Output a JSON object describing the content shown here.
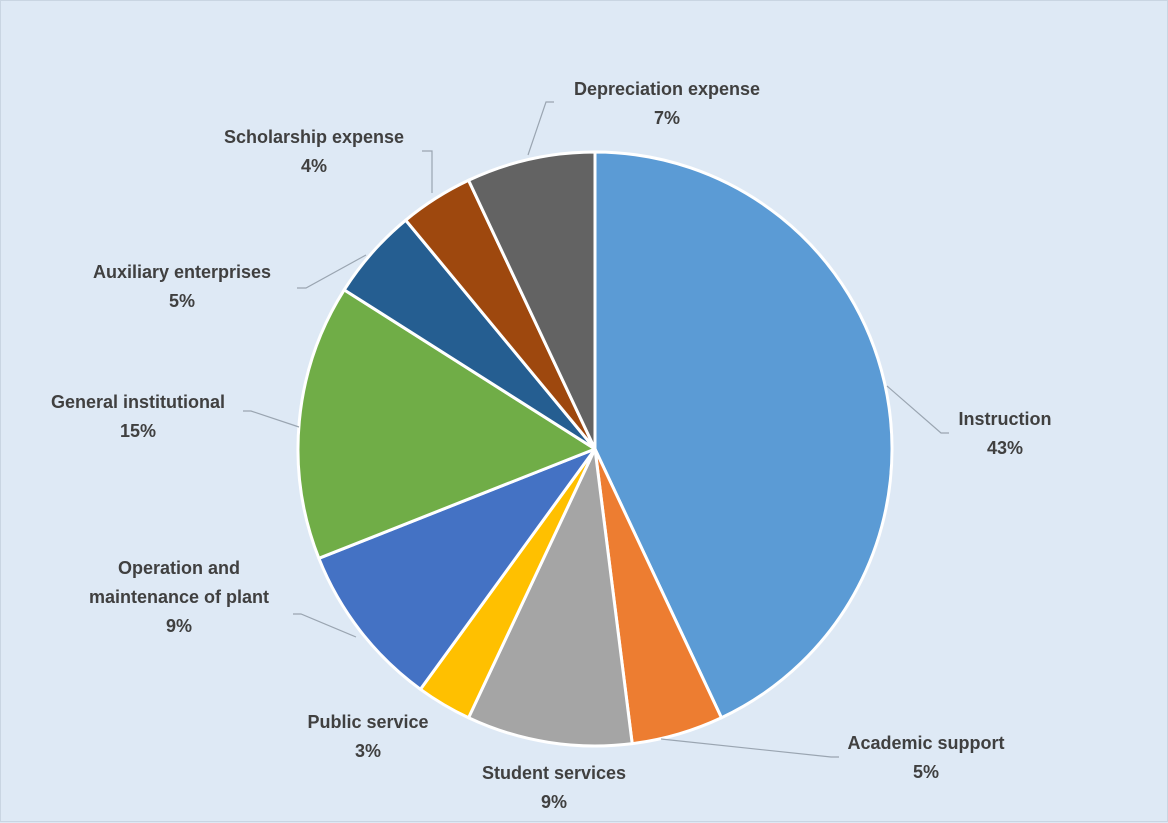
{
  "chart_data": {
    "type": "pie",
    "title": "",
    "start_angle_deg": 0,
    "direction": "clockwise",
    "slices": [
      {
        "label": [
          "Instruction"
        ],
        "value": 43,
        "pct_label": "43%",
        "color": "#5b9bd5"
      },
      {
        "label": [
          "Academic support"
        ],
        "value": 5,
        "pct_label": "5%",
        "color": "#ed7d31"
      },
      {
        "label": [
          "Student services"
        ],
        "value": 9,
        "pct_label": "9%",
        "color": "#a5a5a5"
      },
      {
        "label": [
          "Public service"
        ],
        "value": 3,
        "pct_label": "3%",
        "color": "#ffc000"
      },
      {
        "label": [
          "Operation and",
          "maintenance of plant"
        ],
        "value": 9,
        "pct_label": "9%",
        "color": "#4472c4"
      },
      {
        "label": [
          "General institutional"
        ],
        "value": 15,
        "pct_label": "15%",
        "color": "#70ad47"
      },
      {
        "label": [
          "Auxiliary enterprises"
        ],
        "value": 5,
        "pct_label": "5%",
        "color": "#255e91"
      },
      {
        "label": [
          "Scholarship expense"
        ],
        "value": 4,
        "pct_label": "4%",
        "color": "#9e480e"
      },
      {
        "label": [
          "Depreciation expense"
        ],
        "value": 7,
        "pct_label": "7%",
        "color": "#636363"
      }
    ]
  }
}
